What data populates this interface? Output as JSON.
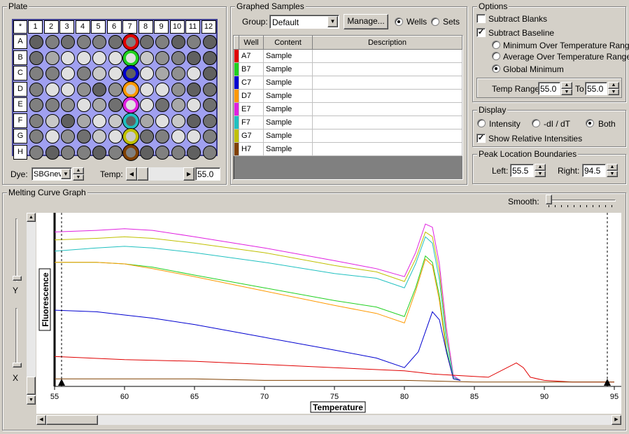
{
  "plate": {
    "title": "Plate",
    "corner": "*",
    "columns": [
      "1",
      "2",
      "3",
      "4",
      "5",
      "6",
      "7",
      "8",
      "9",
      "10",
      "11",
      "12"
    ],
    "rows": [
      "A",
      "B",
      "C",
      "D",
      "E",
      "F",
      "G",
      "H"
    ],
    "dye_label": "Dye:",
    "dye_value": "SBGnev",
    "temp_label": "Temp:",
    "temp_value": "55.0",
    "highlight_colors": [
      "#e00000",
      "#20d020",
      "#0000d0",
      "#ff9900",
      "#e020e0",
      "#20c0c0",
      "#c0c000",
      "#804000"
    ]
  },
  "graphed": {
    "title": "Graphed Samples",
    "group_label": "Group:",
    "group_value": "Default",
    "manage_label": "Manage...",
    "wells_label": "Wells",
    "sets_label": "Sets",
    "headers": [
      "Well",
      "Content",
      "Description"
    ],
    "rows": [
      {
        "color": "#e00000",
        "well": "A7",
        "content": "Sample",
        "desc": ""
      },
      {
        "color": "#20d020",
        "well": "B7",
        "content": "Sample",
        "desc": ""
      },
      {
        "color": "#0000d0",
        "well": "C7",
        "content": "Sample",
        "desc": ""
      },
      {
        "color": "#ff9900",
        "well": "D7",
        "content": "Sample",
        "desc": ""
      },
      {
        "color": "#e020e0",
        "well": "E7",
        "content": "Sample",
        "desc": ""
      },
      {
        "color": "#20c0c0",
        "well": "F7",
        "content": "Sample",
        "desc": ""
      },
      {
        "color": "#c0c000",
        "well": "G7",
        "content": "Sample",
        "desc": ""
      },
      {
        "color": "#804000",
        "well": "H7",
        "content": "Sample",
        "desc": ""
      }
    ]
  },
  "options": {
    "title": "Options",
    "subtract_blanks": "Subtract Blanks",
    "subtract_baseline": "Subtract Baseline",
    "min_range": "Minimum Over Temperature Range",
    "avg_range": "Average Over Temperature Range",
    "global_min": "Global Minimum",
    "temp_range_label": "Temp Range:",
    "temp_from": "55.0",
    "to_label": "To",
    "temp_to": "55.0"
  },
  "display": {
    "title": "Display",
    "intensity": "Intensity",
    "didt": "-dI / dT",
    "both": "Both",
    "show_relative": "Show Relative Intensities"
  },
  "peak": {
    "title": "Peak Location Boundaries",
    "left_label": "Left:",
    "left_value": "55.5",
    "right_label": "Right:",
    "right_value": "94.5"
  },
  "graph": {
    "title": "Melting Curve Graph",
    "smooth_label": "Smooth:",
    "y_label": "Y",
    "x_label": "X"
  },
  "chart_data": {
    "type": "line",
    "xlabel": "Temperature",
    "ylabel": "Fluorescence",
    "xlim": [
      55,
      95
    ],
    "xticks": [
      "55",
      "60",
      "65",
      "70",
      "75",
      "80",
      "85",
      "90",
      "95"
    ],
    "ylim": [
      0,
      1
    ],
    "boundaries": [
      55.5,
      94.5
    ],
    "series": [
      {
        "color": "#e020e0",
        "x": [
          55,
          58,
          60,
          62,
          65,
          70,
          75,
          78,
          80,
          80.8,
          81.5,
          82,
          82.5,
          83,
          83.5,
          84
        ],
        "y": [
          0.95,
          0.96,
          0.97,
          0.96,
          0.92,
          0.85,
          0.77,
          0.72,
          0.67,
          0.82,
          1.0,
          0.98,
          0.75,
          0.35,
          0.05,
          0.02
        ]
      },
      {
        "color": "#c0c000",
        "x": [
          55,
          58,
          60,
          62,
          65,
          70,
          75,
          78,
          80,
          80.8,
          81.5,
          82,
          82.5,
          83,
          83.5,
          84
        ],
        "y": [
          0.9,
          0.91,
          0.92,
          0.91,
          0.88,
          0.82,
          0.74,
          0.7,
          0.64,
          0.78,
          0.95,
          0.92,
          0.7,
          0.3,
          0.04,
          0.02
        ]
      },
      {
        "color": "#20c0c0",
        "x": [
          55,
          58,
          60,
          62,
          65,
          70,
          75,
          78,
          80,
          80.8,
          81.5,
          82,
          82.5,
          83,
          83.5,
          84
        ],
        "y": [
          0.83,
          0.85,
          0.86,
          0.85,
          0.82,
          0.76,
          0.69,
          0.66,
          0.6,
          0.75,
          0.92,
          0.88,
          0.65,
          0.28,
          0.04,
          0.02
        ]
      },
      {
        "color": "#20d020",
        "x": [
          55,
          58,
          60,
          62,
          65,
          70,
          75,
          78,
          80,
          80.8,
          81.5,
          82,
          82.5,
          83,
          83.5,
          84
        ],
        "y": [
          0.76,
          0.76,
          0.75,
          0.73,
          0.68,
          0.6,
          0.52,
          0.48,
          0.42,
          0.6,
          0.8,
          0.76,
          0.55,
          0.22,
          0.03,
          0.02
        ]
      },
      {
        "color": "#ff9900",
        "x": [
          55,
          58,
          60,
          62,
          65,
          70,
          75,
          78,
          80,
          80.8,
          81.5,
          82,
          82.5,
          83,
          83.5,
          84
        ],
        "y": [
          0.76,
          0.76,
          0.75,
          0.72,
          0.67,
          0.58,
          0.49,
          0.44,
          0.38,
          0.58,
          0.78,
          0.74,
          0.52,
          0.2,
          0.03,
          0.02
        ]
      },
      {
        "color": "#0000d0",
        "x": [
          55,
          58,
          60,
          62,
          65,
          70,
          75,
          78,
          80,
          81,
          82,
          82.5,
          83,
          83.5,
          84
        ],
        "y": [
          0.46,
          0.45,
          0.43,
          0.41,
          0.37,
          0.29,
          0.21,
          0.16,
          0.1,
          0.2,
          0.45,
          0.4,
          0.2,
          0.03,
          0.02
        ]
      },
      {
        "color": "#e00000",
        "x": [
          55,
          60,
          65,
          70,
          75,
          80,
          82,
          84,
          86,
          88,
          88.5,
          89,
          90,
          92,
          95
        ],
        "y": [
          0.17,
          0.15,
          0.14,
          0.12,
          0.1,
          0.08,
          0.06,
          0.05,
          0.04,
          0.13,
          0.1,
          0.04,
          0.02,
          0.01,
          0.01
        ]
      },
      {
        "color": "#804000",
        "x": [
          55,
          60,
          65,
          70,
          75,
          80,
          85,
          90,
          95
        ],
        "y": [
          0.03,
          0.03,
          0.03,
          0.02,
          0.02,
          0.02,
          0.01,
          0.01,
          0.01
        ]
      }
    ]
  }
}
